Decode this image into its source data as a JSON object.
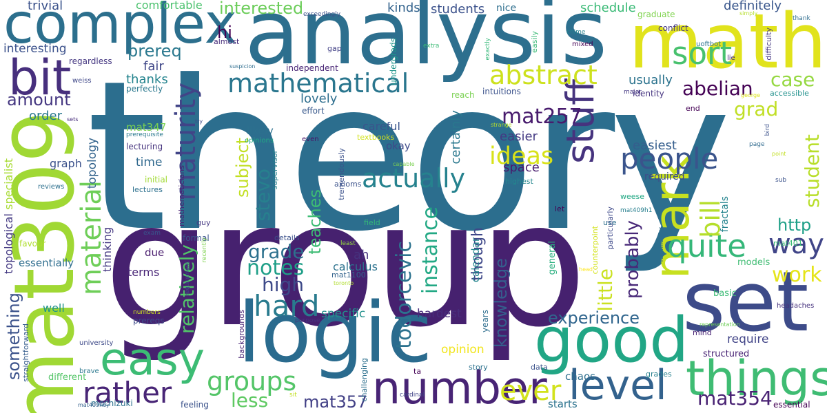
{
  "words": [
    {
      "text": "theory",
      "color": "#2c6e8e"
    },
    {
      "text": "group",
      "color": "#46216f"
    },
    {
      "text": "analysis",
      "color": "#2d6f8e"
    },
    {
      "text": "mat309",
      "color": "#a0d834"
    },
    {
      "text": "math",
      "color": "#e1e31c"
    },
    {
      "text": "logic",
      "color": "#2a6b8e"
    },
    {
      "text": "complex",
      "color": "#2c6f8d"
    },
    {
      "text": "set",
      "color": "#3d4b89"
    },
    {
      "text": "good",
      "color": "#21a685"
    },
    {
      "text": "bit",
      "color": "#472f7d"
    },
    {
      "text": "easy",
      "color": "#3cbc74"
    },
    {
      "text": "things",
      "color": "#3fbc73"
    },
    {
      "text": "number",
      "color": "#482475"
    },
    {
      "text": "mark",
      "color": "#c7e020"
    },
    {
      "text": "level",
      "color": "#33628d"
    },
    {
      "text": "stuff",
      "color": "#46337e"
    },
    {
      "text": "mathematical",
      "color": "#2a768e"
    },
    {
      "text": "abstract",
      "color": "#cde11d"
    },
    {
      "text": "people",
      "color": "#3a548c"
    },
    {
      "text": "maturity",
      "color": "#414487"
    },
    {
      "text": "material",
      "color": "#6ece58"
    },
    {
      "text": "sort",
      "color": "#48c16e"
    },
    {
      "text": "hard",
      "color": "#297b8e"
    },
    {
      "text": "quite",
      "color": "#35b779"
    },
    {
      "text": "way",
      "color": "#404588"
    },
    {
      "text": "rather",
      "color": "#482576"
    },
    {
      "text": "groups",
      "color": "#54c568"
    },
    {
      "text": "bill",
      "color": "#b5de2b"
    },
    {
      "text": "ever",
      "color": "#d2e21b"
    },
    {
      "text": "actually",
      "color": "#26828e"
    },
    {
      "text": "ideas",
      "color": "#d8e219"
    },
    {
      "text": "mat257",
      "color": "#481b6d"
    },
    {
      "text": "abelian",
      "color": "#440154"
    },
    {
      "text": "grad",
      "color": "#c0df25"
    },
    {
      "text": "case",
      "color": "#95d840"
    },
    {
      "text": "work",
      "color": "#e5e419"
    },
    {
      "text": "notes",
      "color": "#1f9f88"
    },
    {
      "text": "grade",
      "color": "#2d718e"
    },
    {
      "text": "high",
      "color": "#3e4a89"
    },
    {
      "text": "experience",
      "color": "#31668e"
    },
    {
      "text": "mat354",
      "color": "#482173"
    },
    {
      "text": "less",
      "color": "#5ec962"
    },
    {
      "text": "mat357",
      "color": "#424086"
    },
    {
      "text": "something",
      "color": "#3b528b"
    },
    {
      "text": "subject",
      "color": "#c2df23"
    },
    {
      "text": "stevo",
      "color": "#27808e"
    },
    {
      "text": "teaches",
      "color": "#3dbc74"
    },
    {
      "text": "instance",
      "color": "#22a884"
    },
    {
      "text": "todorcevic",
      "color": "#2c728e"
    },
    {
      "text": "relatively",
      "color": "#52c569"
    },
    {
      "text": "little",
      "color": "#cae11f"
    },
    {
      "text": "probably",
      "color": "#482878"
    },
    {
      "text": "student",
      "color": "#b8de29"
    },
    {
      "text": "http",
      "color": "#1fa088"
    },
    {
      "text": "knowledge",
      "color": "#355f8d"
    },
    {
      "text": "though",
      "color": "#3f4889"
    },
    {
      "text": "interested",
      "color": "#6ccd5a"
    },
    {
      "text": "prereq",
      "color": "#2a788e"
    },
    {
      "text": "hi",
      "color": "#440154"
    },
    {
      "text": "amount",
      "color": "#453781"
    },
    {
      "text": "students",
      "color": "#3b518b"
    },
    {
      "text": "kinds",
      "color": "#33638d"
    },
    {
      "text": "schedule",
      "color": "#3aba76"
    },
    {
      "text": "definitely",
      "color": "#39568c"
    },
    {
      "text": "comfortable",
      "color": "#4ac16d"
    },
    {
      "text": "trivial",
      "color": "#3b528b"
    },
    {
      "text": "interesting",
      "color": "#3b518b"
    },
    {
      "text": "fair",
      "color": "#3f4788"
    },
    {
      "text": "thanks",
      "color": "#25848e"
    },
    {
      "text": "order",
      "color": "#2a788e"
    },
    {
      "text": "usually",
      "color": "#2c738e"
    },
    {
      "text": "easiest",
      "color": "#355e8d"
    },
    {
      "text": "space",
      "color": "#481b6d"
    },
    {
      "text": "easier",
      "color": "#443983"
    },
    {
      "text": "lovely",
      "color": "#2e6e8e"
    },
    {
      "text": "certainly",
      "color": "#2a788e"
    },
    {
      "text": "careful",
      "color": "#3a548c"
    },
    {
      "text": "likely",
      "color": "#2c718e"
    },
    {
      "text": "okay",
      "color": "#3e4989"
    },
    {
      "text": "topology",
      "color": "#33638d"
    },
    {
      "text": "mat347",
      "color": "#7ad151"
    },
    {
      "text": "time",
      "color": "#30698e"
    },
    {
      "text": "graph",
      "color": "#3b518b"
    },
    {
      "text": "specialist",
      "color": "#a8db34"
    },
    {
      "text": "topological",
      "color": "#443a83"
    },
    {
      "text": "essentially",
      "color": "#2e6d8e"
    },
    {
      "text": "well",
      "color": "#20938c"
    },
    {
      "text": "thinking",
      "color": "#453882"
    },
    {
      "text": "terms",
      "color": "#482576"
    },
    {
      "text": "due",
      "color": "#481b6d"
    },
    {
      "text": "ah",
      "color": "#46327e"
    },
    {
      "text": "calculus",
      "color": "#2c728e"
    },
    {
      "text": "specific",
      "color": "#21918c"
    },
    {
      "text": "hardest",
      "color": "#472d7b"
    },
    {
      "text": "opinion",
      "color": "#f1e51d"
    },
    {
      "text": "require",
      "color": "#414487"
    },
    {
      "text": "structured",
      "color": "#482475"
    },
    {
      "text": "chaos",
      "color": "#2e6e8e"
    },
    {
      "text": "starts",
      "color": "#2c738e"
    },
    {
      "text": "calendar",
      "color": "#24868e"
    },
    {
      "text": "general",
      "color": "#29af7f"
    },
    {
      "text": "models",
      "color": "#3fbc73"
    },
    {
      "text": "basic",
      "color": "#3bbb75"
    },
    {
      "text": "fractals",
      "color": "#25848e"
    },
    {
      "text": "required",
      "color": "#3e4c8a"
    },
    {
      "text": "formal",
      "color": "#3a548c"
    },
    {
      "text": "nice",
      "color": "#2e6f8e"
    },
    {
      "text": "graduate",
      "color": "#7fd34e"
    },
    {
      "text": "conflict",
      "color": "#453781"
    },
    {
      "text": "undergrads",
      "color": "#1f958b"
    },
    {
      "text": "independent",
      "color": "#482475"
    },
    {
      "text": "reach",
      "color": "#7ad151"
    },
    {
      "text": "intuitions",
      "color": "#3b528b"
    },
    {
      "text": "identity",
      "color": "#463480"
    },
    {
      "text": "effort",
      "color": "#38598c"
    },
    {
      "text": "perfectly",
      "color": "#2a788e"
    },
    {
      "text": "regardless",
      "color": "#453781"
    },
    {
      "text": "almost",
      "color": "#472c7a"
    },
    {
      "text": "gap",
      "color": "#424186"
    },
    {
      "text": "accessible",
      "color": "#21918c"
    },
    {
      "text": "end",
      "color": "#440154"
    },
    {
      "text": "difficulty",
      "color": "#453781"
    },
    {
      "text": "easily",
      "color": "#3aba76"
    },
    {
      "text": "textbooks",
      "color": "#d2e21b"
    },
    {
      "text": "opinions",
      "color": "#22a884"
    },
    {
      "text": "even",
      "color": "#481467"
    },
    {
      "text": "axioms",
      "color": "#3b528b"
    },
    {
      "text": "supervisor",
      "color": "#27808e"
    },
    {
      "text": "tremendously",
      "color": "#3b518b"
    },
    {
      "text": "mathematicians",
      "color": "#482173"
    },
    {
      "text": "lecturing",
      "color": "#46337e"
    },
    {
      "text": "initial",
      "color": "#a2da37"
    },
    {
      "text": "lectures",
      "color": "#2d708e"
    },
    {
      "text": "reviews",
      "color": "#2d708e"
    },
    {
      "text": "weiss",
      "color": "#3f4788"
    },
    {
      "text": "favour",
      "color": "#b0dd2f"
    },
    {
      "text": "guy",
      "color": "#453882"
    },
    {
      "text": "highest",
      "color": "#24878e"
    },
    {
      "text": "weese",
      "color": "#22a884"
    },
    {
      "text": "use",
      "color": "#2e6f8e"
    },
    {
      "text": "details",
      "color": "#3b518b"
    },
    {
      "text": "field",
      "color": "#35b779"
    },
    {
      "text": "least",
      "color": "#94d840"
    },
    {
      "text": "mat1100",
      "color": "#33638d"
    },
    {
      "text": "toronto",
      "color": "#b0dd2f"
    },
    {
      "text": "recently",
      "color": "#7fd34e"
    },
    {
      "text": "exam",
      "color": "#39568c"
    },
    {
      "text": "requirement",
      "color": "#3e4a89"
    },
    {
      "text": "numbers",
      "color": "#cde11d"
    },
    {
      "text": "prereqs",
      "color": "#3e4c8a"
    },
    {
      "text": "purpose",
      "color": "#46327e"
    },
    {
      "text": "backgrounds",
      "color": "#482475"
    },
    {
      "text": "years",
      "color": "#2e6e8e"
    },
    {
      "text": "university",
      "color": "#3e4a89"
    },
    {
      "text": "brave",
      "color": "#2a788e"
    },
    {
      "text": "different",
      "color": "#54c568"
    },
    {
      "text": "straightforward",
      "color": "#365d8d"
    },
    {
      "text": "mochizuki",
      "color": "#2d718e"
    },
    {
      "text": "feeling",
      "color": "#3b528b"
    },
    {
      "text": "sit",
      "color": "#c2df23"
    },
    {
      "text": "mat409ney",
      "color": "#34618d"
    },
    {
      "text": "challenging",
      "color": "#2d708e"
    },
    {
      "text": "cardinal",
      "color": "#414487"
    },
    {
      "text": "ta",
      "color": "#440154"
    },
    {
      "text": "story",
      "color": "#2c728e"
    },
    {
      "text": "data",
      "color": "#3b528b"
    },
    {
      "text": "grades",
      "color": "#27808e"
    },
    {
      "text": "mind",
      "color": "#482475"
    },
    {
      "text": "representation",
      "color": "#6ece58"
    },
    {
      "text": "essential",
      "color": "#440154"
    },
    {
      "text": "headaches",
      "color": "#46327e"
    },
    {
      "text": "familiarity",
      "color": "#2e6e8e"
    },
    {
      "text": "counterpoint",
      "color": "#d2e21b"
    },
    {
      "text": "particularly",
      "color": "#3e4989"
    },
    {
      "text": "mat401",
      "color": "#3bbb75"
    },
    {
      "text": "head",
      "color": "#fde725"
    },
    {
      "text": "mat409h1",
      "color": "#277f8e"
    },
    {
      "text": "let",
      "color": "#440154"
    },
    {
      "text": "capable",
      "color": "#7ad151"
    },
    {
      "text": "strange",
      "color": "#b5de2b"
    },
    {
      "text": "george",
      "color": "#dde318"
    },
    {
      "text": "point",
      "color": "#c2df23"
    },
    {
      "text": "page",
      "color": "#306a8e"
    },
    {
      "text": "sub",
      "color": "#3b528b"
    },
    {
      "text": "bird",
      "color": "#3b518b"
    },
    {
      "text": "major",
      "color": "#453882"
    },
    {
      "text": "lie",
      "color": "#472a7a"
    },
    {
      "text": "uoftbot",
      "color": "#2c728e"
    },
    {
      "text": "mixed",
      "color": "#440154"
    },
    {
      "text": "chime",
      "color": "#26818e"
    },
    {
      "text": "exactly",
      "color": "#35b779"
    },
    {
      "text": "extra",
      "color": "#3bbb75"
    },
    {
      "text": "exceedingly",
      "color": "#3b528b"
    },
    {
      "text": "simply",
      "color": "#b5de2b"
    },
    {
      "text": "thank",
      "color": "#2e6d8e"
    },
    {
      "text": "suspicion",
      "color": "#2e6d8e"
    },
    {
      "text": "try",
      "color": "#3e4c8a"
    },
    {
      "text": "prerequisite",
      "color": "#2a788e"
    },
    {
      "text": "sets",
      "color": "#472d7b"
    }
  ]
}
